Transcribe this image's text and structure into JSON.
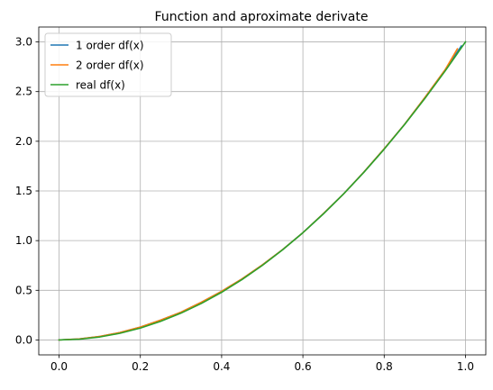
{
  "chart_data": {
    "type": "line",
    "title": "Function and aproximate derivate",
    "xlabel": "",
    "ylabel": "",
    "xlim": [
      -0.05,
      1.05
    ],
    "ylim": [
      -0.15,
      3.15
    ],
    "xticks": [
      0.0,
      0.2,
      0.4,
      0.6,
      0.8,
      1.0
    ],
    "xtick_labels": [
      "0.0",
      "0.2",
      "0.4",
      "0.6",
      "0.8",
      "1.0"
    ],
    "yticks": [
      0.0,
      0.5,
      1.0,
      1.5,
      2.0,
      2.5,
      3.0
    ],
    "ytick_labels": [
      "0.0",
      "0.5",
      "1.0",
      "1.5",
      "2.0",
      "2.5",
      "3.0"
    ],
    "grid": true,
    "legend_position": "upper-left",
    "series": [
      {
        "name": "1 order df(x)",
        "color": "#1f77b4",
        "x": [
          0.0,
          0.05,
          0.1,
          0.15,
          0.2,
          0.25,
          0.3,
          0.35,
          0.4,
          0.45,
          0.5,
          0.55,
          0.6,
          0.65,
          0.7,
          0.75,
          0.8,
          0.85,
          0.9,
          0.95,
          0.99
        ],
        "y": [
          0.0,
          0.01,
          0.035,
          0.075,
          0.13,
          0.2,
          0.28,
          0.38,
          0.49,
          0.615,
          0.755,
          0.91,
          1.08,
          1.27,
          1.47,
          1.69,
          1.925,
          2.17,
          2.44,
          2.72,
          2.96
        ]
      },
      {
        "name": "2 order df(x)",
        "color": "#ff7f0e",
        "x": [
          0.0,
          0.05,
          0.1,
          0.15,
          0.2,
          0.25,
          0.3,
          0.35,
          0.4,
          0.45,
          0.5,
          0.55,
          0.6,
          0.65,
          0.7,
          0.75,
          0.8,
          0.85,
          0.9,
          0.95,
          0.98
        ],
        "y": [
          0.0,
          0.01,
          0.035,
          0.075,
          0.13,
          0.2,
          0.28,
          0.38,
          0.49,
          0.615,
          0.755,
          0.91,
          1.08,
          1.27,
          1.47,
          1.69,
          1.925,
          2.17,
          2.44,
          2.72,
          2.93
        ]
      },
      {
        "name": "real df(x)",
        "color": "#2ca02c",
        "x": [
          0.0,
          0.05,
          0.1,
          0.15,
          0.2,
          0.25,
          0.3,
          0.35,
          0.4,
          0.45,
          0.5,
          0.55,
          0.6,
          0.65,
          0.7,
          0.75,
          0.8,
          0.85,
          0.9,
          0.95,
          1.0
        ],
        "y": [
          0.0,
          0.0075,
          0.03,
          0.0675,
          0.12,
          0.1875,
          0.27,
          0.3675,
          0.48,
          0.6075,
          0.75,
          0.9075,
          1.08,
          1.2675,
          1.47,
          1.6875,
          1.92,
          2.1675,
          2.43,
          2.7075,
          3.0
        ]
      }
    ]
  }
}
